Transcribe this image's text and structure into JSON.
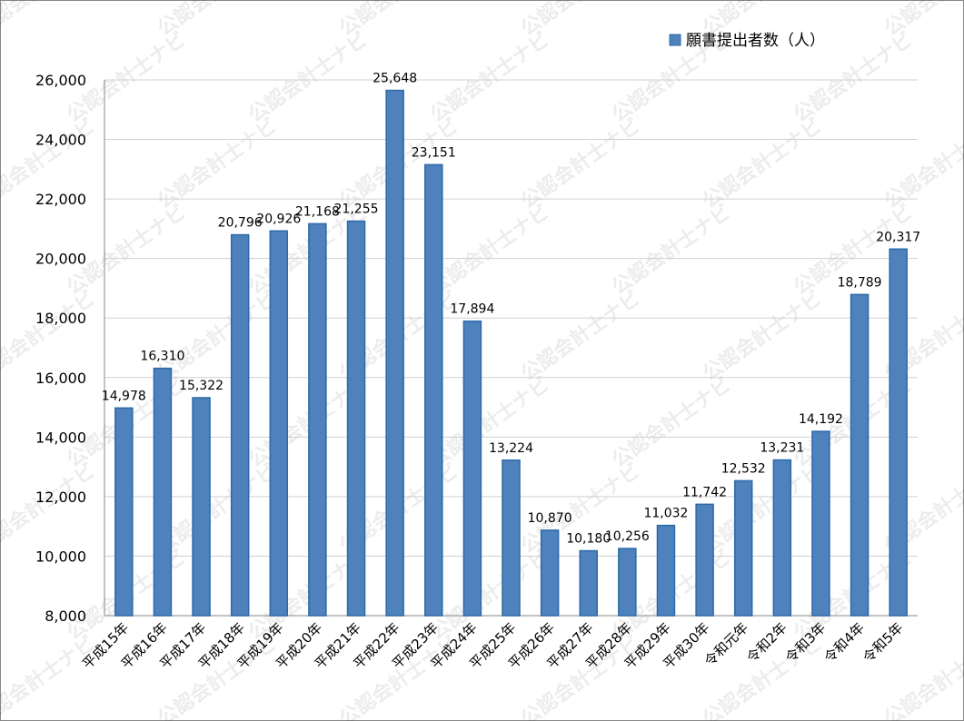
{
  "chart_data": {
    "type": "bar",
    "watermark": "公認会計士ナビ",
    "categories": [
      "平成15年",
      "平成16年",
      "平成17年",
      "平成18年",
      "平成19年",
      "平成20年",
      "平成21年",
      "平成22年",
      "平成23年",
      "平成24年",
      "平成25年",
      "平成26年",
      "平成27年",
      "平成28年",
      "平成29年",
      "平成30年",
      "令和元年",
      "令和2年",
      "令和3年",
      "令和4年",
      "令和5年"
    ],
    "series": [
      {
        "name": "願書提出者数（人）",
        "color": "#4f81bd",
        "values": [
          14978,
          16310,
          15322,
          20796,
          20926,
          21168,
          21255,
          25648,
          23151,
          17894,
          13224,
          10870,
          10180,
          10256,
          11032,
          11742,
          12532,
          13231,
          14192,
          18789,
          20317
        ],
        "value_labels": [
          "14,978",
          "16,310",
          "15,322",
          "20,796",
          "20,926",
          "21,168",
          "21,255",
          "25,648",
          "23,151",
          "17,894",
          "13,224",
          "10,870",
          "10,180",
          "10,256",
          "11,032",
          "11,742",
          "12,532",
          "13,231",
          "14,192",
          "18,789",
          "20,317"
        ]
      }
    ],
    "ylim": [
      8000,
      26000
    ],
    "yticks": [
      {
        "value": 8000,
        "label": "8,000"
      },
      {
        "value": 10000,
        "label": "10,000"
      },
      {
        "value": 12000,
        "label": "12,000"
      },
      {
        "value": 14000,
        "label": "14,000"
      },
      {
        "value": 16000,
        "label": "16,000"
      },
      {
        "value": 18000,
        "label": "18,000"
      },
      {
        "value": 20000,
        "label": "20,000"
      },
      {
        "value": 22000,
        "label": "22,000"
      },
      {
        "value": 24000,
        "label": "24,000"
      },
      {
        "value": 26000,
        "label": "26,000"
      }
    ],
    "grid": true,
    "legend": "top-right"
  }
}
